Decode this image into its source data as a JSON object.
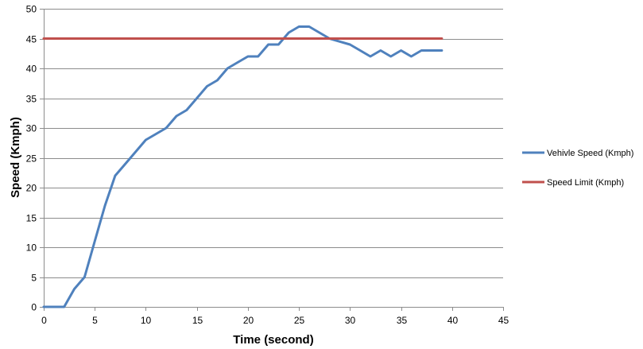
{
  "chart_data": {
    "type": "line",
    "xlabel": "Time (second)",
    "ylabel": "Speed (Kmph)",
    "xlim": [
      0,
      45
    ],
    "ylim": [
      0,
      50
    ],
    "x_ticks": [
      0,
      5,
      10,
      15,
      20,
      25,
      30,
      35,
      40,
      45
    ],
    "y_ticks": [
      0,
      5,
      10,
      15,
      20,
      25,
      30,
      35,
      40,
      45,
      50
    ],
    "grid": "horizontal",
    "legend_position": "right",
    "series": [
      {
        "name": "Vehivle Speed (Kmph)",
        "color": "#4f81bd",
        "x": [
          0,
          1,
          2,
          3,
          4,
          5,
          6,
          7,
          8,
          9,
          10,
          11,
          12,
          13,
          14,
          15,
          16,
          17,
          18,
          19,
          20,
          21,
          22,
          23,
          24,
          25,
          26,
          27,
          28,
          29,
          30,
          31,
          32,
          33,
          34,
          35,
          36,
          37,
          38,
          39
        ],
        "y": [
          0,
          0,
          0,
          3,
          5,
          11,
          17,
          22,
          24,
          26,
          28,
          29,
          30,
          32,
          33,
          35,
          37,
          38,
          40,
          41,
          42,
          42,
          44,
          44,
          46,
          47,
          47,
          46,
          45,
          44.5,
          44,
          43,
          42,
          43,
          42,
          43,
          42,
          43,
          43,
          43
        ]
      },
      {
        "name": "Speed Limit (Kmph)",
        "color": "#c0504d",
        "x": [
          0,
          39
        ],
        "y": [
          45,
          45
        ]
      }
    ]
  }
}
